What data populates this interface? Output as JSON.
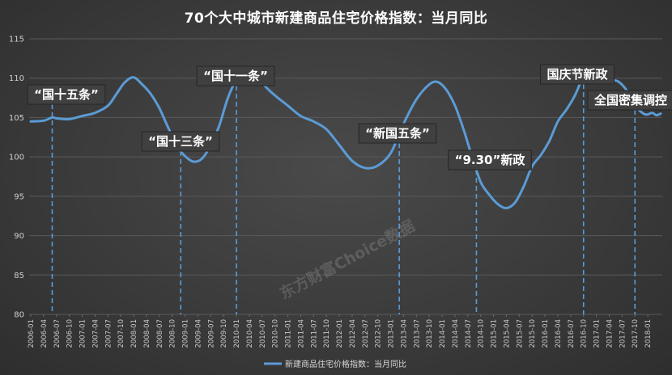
{
  "chart_data": {
    "type": "line",
    "title": "70个大中城市新建商品住宅价格指数：当月同比",
    "ylim": [
      80,
      115
    ],
    "yticks": [
      80,
      85,
      90,
      95,
      100,
      105,
      110,
      115
    ],
    "grid": true,
    "legend_position": "bottom",
    "x_tick_labels": [
      "2006-01",
      "2006-04",
      "2006-07",
      "2006-10",
      "2007-01",
      "2007-04",
      "2007-07",
      "2007-10",
      "2008-01",
      "2008-04",
      "2008-07",
      "2008-10",
      "2009-01",
      "2009-04",
      "2009-07",
      "2009-10",
      "2010-01",
      "2010-04",
      "2010-07",
      "2010-10",
      "2011-01",
      "2011-04",
      "2011-07",
      "2011-10",
      "2012-01",
      "2012-04",
      "2012-07",
      "2012-10",
      "2013-01",
      "2013-04",
      "2013-07",
      "2013-10",
      "2014-01",
      "2014-04",
      "2014-07",
      "2014-10",
      "2015-01",
      "2015-04",
      "2015-07",
      "2015-10",
      "2016-01",
      "2016-04",
      "2016-07",
      "2016-10",
      "2017-01",
      "2017-04",
      "2017-07",
      "2017-10",
      "2018-01"
    ],
    "series": [
      {
        "name": "新建商品住宅价格指数：当月同比",
        "color": "#5b9bd5",
        "points": [
          [
            "2006-01",
            104.5
          ],
          [
            "2006-04",
            104.6
          ],
          [
            "2006-06",
            105.0
          ],
          [
            "2006-07",
            104.9
          ],
          [
            "2006-10",
            104.8
          ],
          [
            "2007-01",
            105.2
          ],
          [
            "2007-04",
            105.6
          ],
          [
            "2007-07",
            106.5
          ],
          [
            "2007-09",
            108.0
          ],
          [
            "2007-11",
            109.5
          ],
          [
            "2008-01",
            110.1
          ],
          [
            "2008-03",
            109.2
          ],
          [
            "2008-05",
            108.0
          ],
          [
            "2008-07",
            106.2
          ],
          [
            "2008-09",
            103.8
          ],
          [
            "2008-11",
            101.5
          ],
          [
            "2009-01",
            100.1
          ],
          [
            "2009-03",
            99.4
          ],
          [
            "2009-05",
            99.8
          ],
          [
            "2009-07",
            101.5
          ],
          [
            "2009-09",
            104.0
          ],
          [
            "2009-11",
            107.5
          ],
          [
            "2010-01",
            109.8
          ],
          [
            "2010-03",
            110.9
          ],
          [
            "2010-04",
            111.2
          ],
          [
            "2010-06",
            110.0
          ],
          [
            "2010-08",
            108.8
          ],
          [
            "2010-10",
            107.8
          ],
          [
            "2011-01",
            106.5
          ],
          [
            "2011-04",
            105.2
          ],
          [
            "2011-07",
            104.5
          ],
          [
            "2011-10",
            103.5
          ],
          [
            "2012-01",
            101.5
          ],
          [
            "2012-04",
            99.5
          ],
          [
            "2012-07",
            98.6
          ],
          [
            "2012-10",
            98.9
          ],
          [
            "2013-01",
            100.5
          ],
          [
            "2013-04",
            104.2
          ],
          [
            "2013-07",
            107.3
          ],
          [
            "2013-10",
            109.2
          ],
          [
            "2013-12",
            109.5
          ],
          [
            "2014-02",
            108.5
          ],
          [
            "2014-04",
            106.5
          ],
          [
            "2014-06",
            103.5
          ],
          [
            "2014-08",
            100.0
          ],
          [
            "2014-10",
            96.8
          ],
          [
            "2014-12",
            95.2
          ],
          [
            "2015-02",
            94.0
          ],
          [
            "2015-04",
            93.5
          ],
          [
            "2015-06",
            94.2
          ],
          [
            "2015-08",
            96.2
          ],
          [
            "2015-10",
            98.8
          ],
          [
            "2015-12",
            100.2
          ],
          [
            "2016-02",
            102.0
          ],
          [
            "2016-04",
            104.5
          ],
          [
            "2016-06",
            106.0
          ],
          [
            "2016-08",
            107.8
          ],
          [
            "2016-10",
            110.2
          ],
          [
            "2016-12",
            110.8
          ],
          [
            "2017-02",
            110.5
          ],
          [
            "2017-04",
            109.8
          ],
          [
            "2017-06",
            109.6
          ],
          [
            "2017-08",
            108.5
          ],
          [
            "2017-10",
            106.5
          ],
          [
            "2017-12",
            105.5
          ],
          [
            "2018-01",
            105.4
          ],
          [
            "2018-02",
            105.6
          ],
          [
            "2018-03",
            105.3
          ],
          [
            "2018-04",
            105.5
          ]
        ]
      }
    ],
    "annotations": [
      {
        "label": "“国十五条”",
        "date": "2006-06"
      },
      {
        "label": "“国十三条”",
        "date": "2008-12"
      },
      {
        "label": "“国十一条”",
        "date": "2010-01"
      },
      {
        "label": "“新国五条”",
        "date": "2013-03"
      },
      {
        "label": "“9.30”新政",
        "date": "2014-09"
      },
      {
        "label": "国庆节新政",
        "date": "2016-10"
      },
      {
        "label": "全国密集调控",
        "date": "2017-10"
      }
    ]
  },
  "watermark": "东方财富Choice数据"
}
